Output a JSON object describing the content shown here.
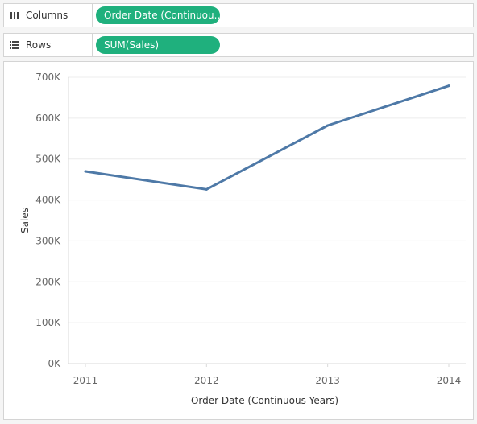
{
  "columns_shelf": {
    "label": "Columns",
    "icon": "columns-shelf-icon",
    "pill_label": "Order Date (Continuou..",
    "pill_color": "#1fb07d"
  },
  "rows_shelf": {
    "label": "Rows",
    "icon": "rows-shelf-icon",
    "pill_label": "SUM(Sales)",
    "pill_color": "#1fb07d"
  },
  "chart_data": {
    "type": "line",
    "x": [
      2011,
      2012,
      2013,
      2014
    ],
    "x_tick_labels": [
      "2011",
      "2012",
      "2013",
      "2014"
    ],
    "series": [
      {
        "values": [
          470000,
          426000,
          582000,
          679000
        ],
        "color": "#4e79a7"
      }
    ],
    "y_ticks": [
      0,
      100000,
      200000,
      300000,
      400000,
      500000,
      600000,
      700000
    ],
    "y_tick_labels": [
      "0K",
      "100K",
      "200K",
      "300K",
      "400K",
      "500K",
      "600K",
      "700K"
    ],
    "ylim": [
      0,
      700000
    ],
    "xlim": [
      2011,
      2014
    ],
    "xlabel": "Order Date (Continuous Years)",
    "ylabel": "Sales",
    "grid": true
  }
}
